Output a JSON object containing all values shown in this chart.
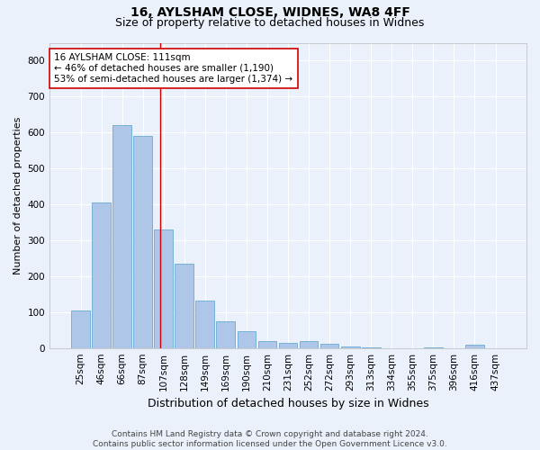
{
  "title1": "16, AYLSHAM CLOSE, WIDNES, WA8 4FF",
  "title2": "Size of property relative to detached houses in Widnes",
  "xlabel": "Distribution of detached houses by size in Widnes",
  "ylabel": "Number of detached properties",
  "categories": [
    "25sqm",
    "46sqm",
    "66sqm",
    "87sqm",
    "107sqm",
    "128sqm",
    "149sqm",
    "169sqm",
    "190sqm",
    "210sqm",
    "231sqm",
    "252sqm",
    "272sqm",
    "293sqm",
    "313sqm",
    "334sqm",
    "355sqm",
    "375sqm",
    "396sqm",
    "416sqm",
    "437sqm"
  ],
  "values": [
    105,
    405,
    620,
    590,
    330,
    235,
    133,
    75,
    48,
    20,
    15,
    18,
    12,
    5,
    2,
    0,
    0,
    2,
    0,
    8,
    0
  ],
  "bar_color": "#aec6e8",
  "bar_edge_color": "#6aaad4",
  "bg_color": "#eaf1fb",
  "grid_color": "#ffffff",
  "vline_color": "#cc0000",
  "annotation_text": "16 AYLSHAM CLOSE: 111sqm\n← 46% of detached houses are smaller (1,190)\n53% of semi-detached houses are larger (1,374) →",
  "annotation_box_color": "#ffffff",
  "annotation_box_edge": "#cc0000",
  "ylim": [
    0,
    850
  ],
  "yticks": [
    0,
    100,
    200,
    300,
    400,
    500,
    600,
    700,
    800
  ],
  "footnote": "Contains HM Land Registry data © Crown copyright and database right 2024.\nContains public sector information licensed under the Open Government Licence v3.0.",
  "title_fontsize": 10,
  "subtitle_fontsize": 9,
  "xlabel_fontsize": 9,
  "ylabel_fontsize": 8,
  "tick_fontsize": 7.5,
  "annotation_fontsize": 7.5,
  "footnote_fontsize": 6.5
}
